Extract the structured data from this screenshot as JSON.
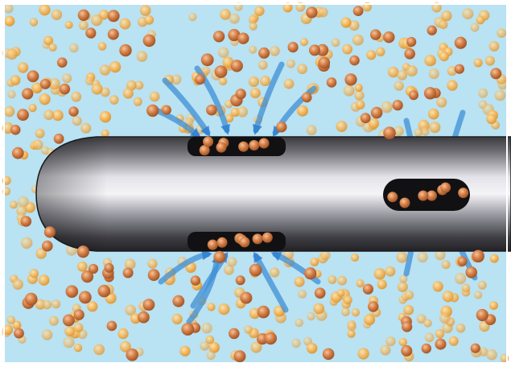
{
  "illustration": {
    "subject": "needle-tip-with-side-ports-drawing-particles",
    "colors": {
      "fluid": "#b9e2f3",
      "particle_light": "#f0b860",
      "particle_dark": "#c9773a",
      "needle_dark": "#2b2b2e",
      "needle_light": "#e6e6ea",
      "flow_arrow": "#3f8fd6"
    }
  }
}
